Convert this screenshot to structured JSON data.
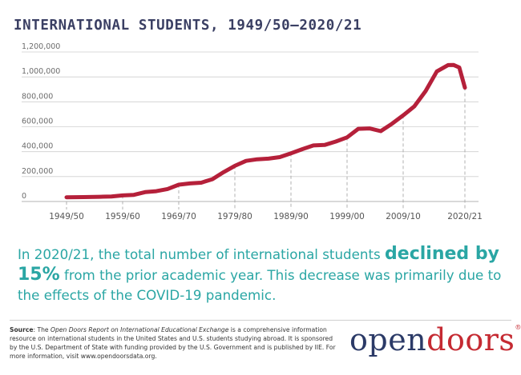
{
  "title": "INTERNATIONAL STUDENTS, 1949/50–2020/21",
  "chart_data": {
    "type": "line",
    "title": "INTERNATIONAL STUDENTS, 1949/50–2020/21",
    "xlabel": "",
    "ylabel": "",
    "x_start_year": 1949,
    "x_end_year": 2020,
    "xticks": [
      "1949/50",
      "1959/60",
      "1969/70",
      "1979/80",
      "1989/90",
      "1999/00",
      "2009/10",
      "2020/21"
    ],
    "xtick_years": [
      1949,
      1959,
      1969,
      1979,
      1989,
      1999,
      2009,
      2020
    ],
    "yticks": [
      "0",
      "200,000",
      "400,000",
      "600,000",
      "800,000",
      "1,000,000",
      "1,200,000"
    ],
    "ylim": [
      0,
      1200000
    ],
    "grid": "horizontal",
    "line_color": "#b5203a",
    "series": [
      {
        "x": [
          1949,
          1952,
          1955,
          1957,
          1959,
          1961,
          1963,
          1965,
          1967,
          1969,
          1971,
          1973,
          1975,
          1977,
          1979,
          1981,
          1983,
          1985,
          1987,
          1989,
          1991,
          1993,
          1995,
          1997,
          1999,
          2001,
          2003,
          2005,
          2007,
          2009,
          2011,
          2013,
          2015,
          2017,
          2018,
          2019,
          2020
        ],
        "y": [
          34232,
          35000,
          38000,
          40000,
          48486,
          53107,
          74814,
          82709,
          100262,
          134959,
          144708,
          151066,
          179344,
          235509,
          286343,
          326299,
          338894,
          343777,
          356187,
          386851,
          419585,
          449749,
          453787,
          481280,
          514723,
          582996,
          586323,
          564766,
          623805,
          690923,
          764495,
          886052,
          1043839,
          1094792,
          1095299,
          1075496,
          914095
        ]
      }
    ]
  },
  "callout": {
    "before": "In 2020/21, the total number of international students ",
    "highlight": "declined by 15%",
    "after": " from the prior academic year. This decrease was primarily due to the effects of the COVID-19 pandemic."
  },
  "source": {
    "label": "Source",
    "text1": ": The ",
    "report": "Open Doors Report on International Educational Exchange",
    "text2": " is a comprehensive information resource on international students in the United States and U.S. students studying abroad. It is sponsored by the U.S. Department of State with funding provided by the U.S. Government and is published by IIE. For more information, visit www.opendoorsdata.org."
  },
  "logo": {
    "open": "open",
    "doors": "doors",
    "mark": "®"
  },
  "colors": {
    "title": "#3a3f63",
    "line": "#b5203a",
    "accent": "#2aa6a4",
    "logo_open": "#2b3a67",
    "logo_doors": "#c52a32"
  }
}
